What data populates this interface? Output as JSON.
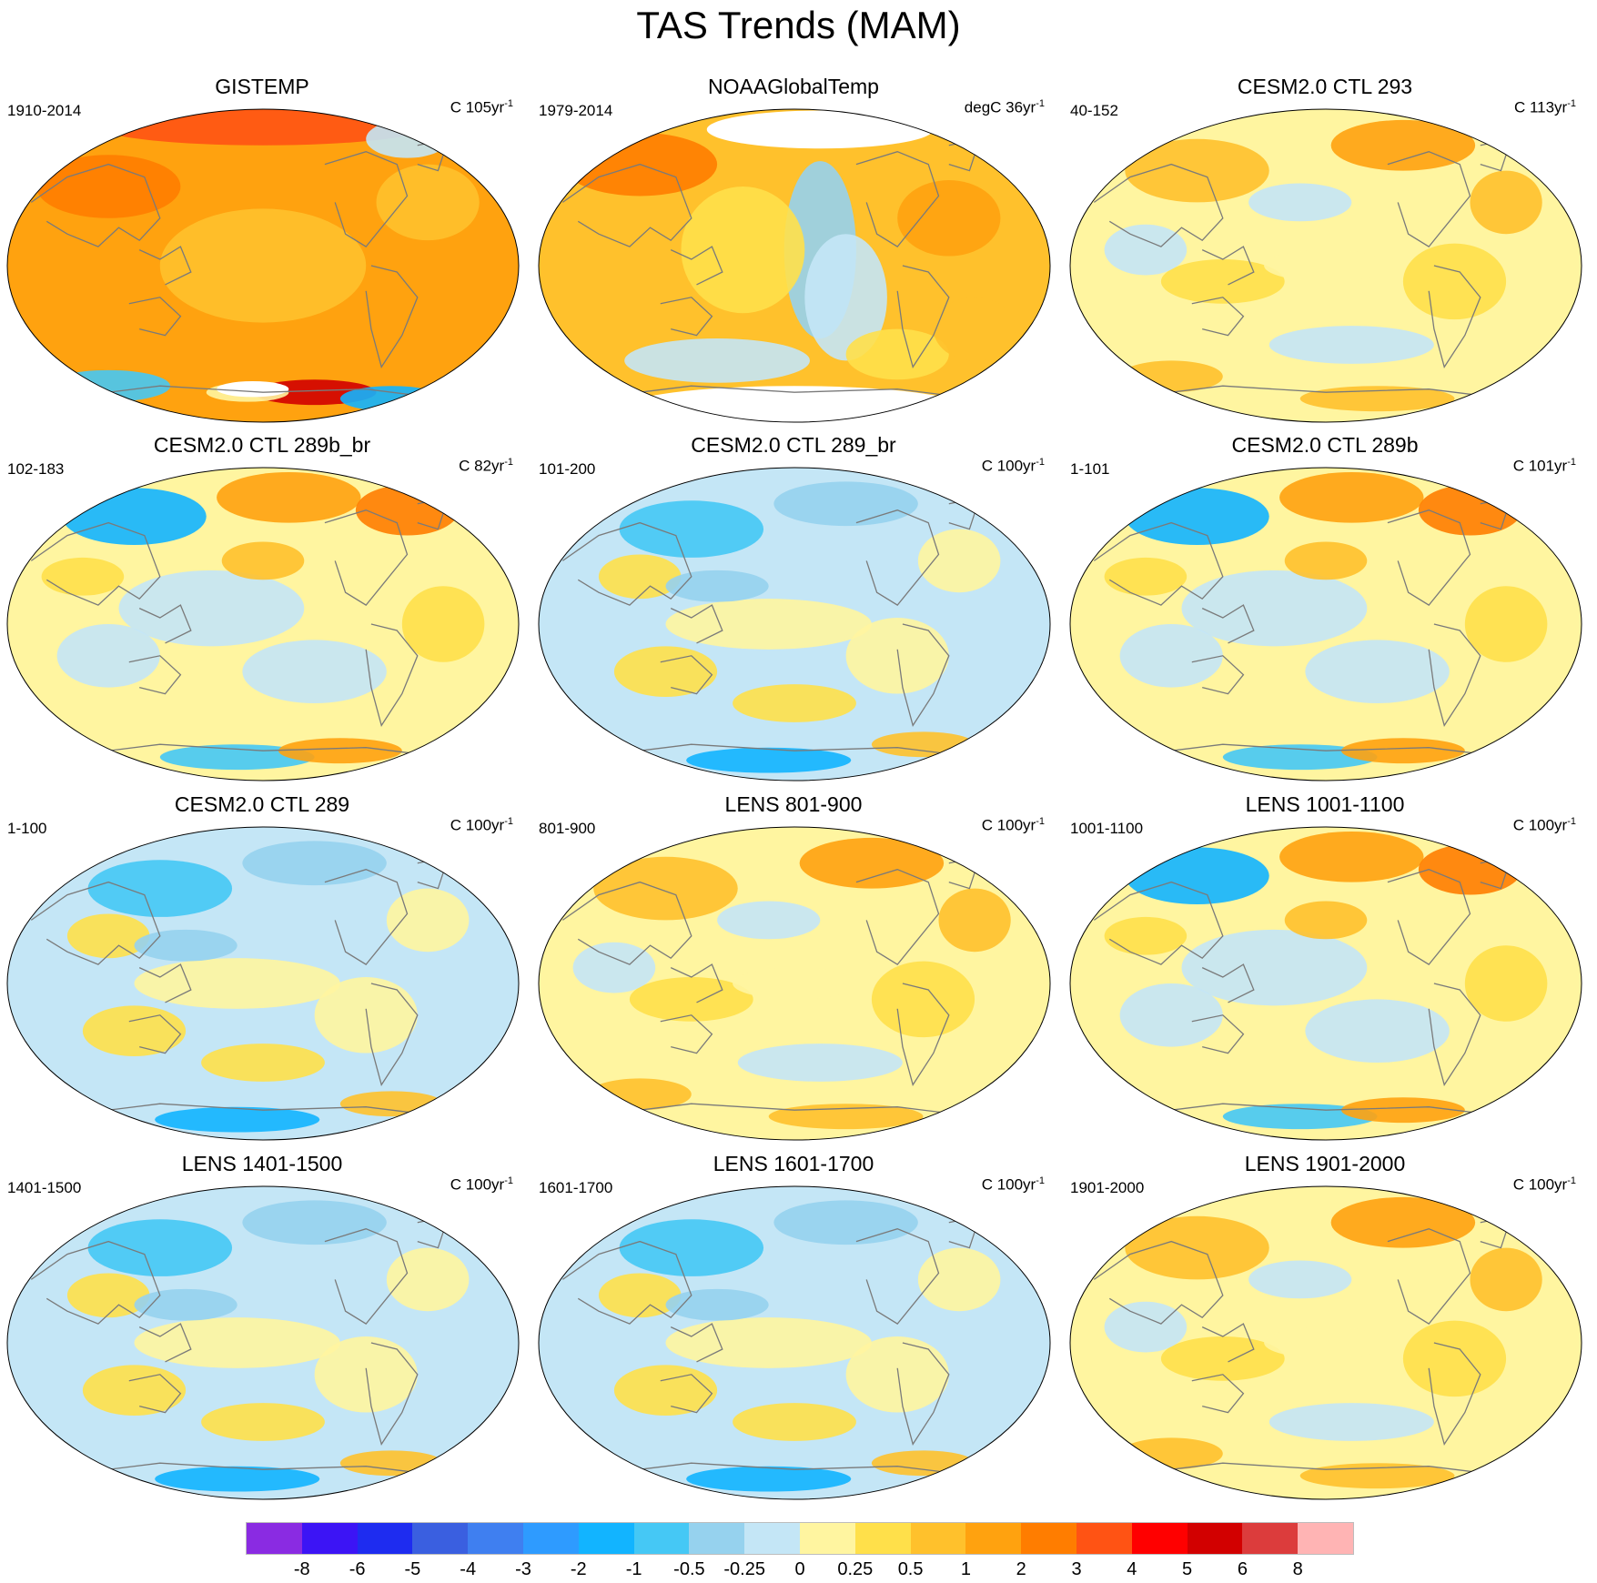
{
  "figure": {
    "title": "TAS Trends (MAM)"
  },
  "palette": {
    "ocean_base": "#fff5a0",
    "coast_color": "#7a7a7a",
    "missing_color": "#ffffff"
  },
  "panels": [
    {
      "title": "GISTEMP",
      "period": "1910-2014",
      "units_prefix": "C 105yr",
      "units_exp": "-1",
      "style": "gis"
    },
    {
      "title": "NOAAGlobalTemp",
      "period": "1979-2014",
      "units_prefix": "degC 36yr",
      "units_exp": "-1",
      "style": "noaa"
    },
    {
      "title": "CESM2.0 CTL 293",
      "period": "40-152",
      "units_prefix": "C 113yr",
      "units_exp": "-1",
      "style": "warm"
    },
    {
      "title": "CESM2.0 CTL 289b_br",
      "period": "102-183",
      "units_prefix": "C 82yr",
      "units_exp": "-1",
      "style": "mixed"
    },
    {
      "title": "CESM2.0 CTL 289_br",
      "period": "101-200",
      "units_prefix": "C 100yr",
      "units_exp": "-1",
      "style": "cool"
    },
    {
      "title": "CESM2.0 CTL 289b",
      "period": "1-101",
      "units_prefix": "C 101yr",
      "units_exp": "-1",
      "style": "mixed"
    },
    {
      "title": "CESM2.0 CTL 289",
      "period": "1-100",
      "units_prefix": "C 100yr",
      "units_exp": "-1",
      "style": "cool"
    },
    {
      "title": "LENS 801-900",
      "period": "801-900",
      "units_prefix": "C 100yr",
      "units_exp": "-1",
      "style": "warm"
    },
    {
      "title": "LENS 1001-1100",
      "period": "1001-1100",
      "units_prefix": "C 100yr",
      "units_exp": "-1",
      "style": "mixed"
    },
    {
      "title": "LENS 1401-1500",
      "period": "1401-1500",
      "units_prefix": "C 100yr",
      "units_exp": "-1",
      "style": "cool"
    },
    {
      "title": "LENS 1601-1700",
      "period": "1601-1700",
      "units_prefix": "C 100yr",
      "units_exp": "-1",
      "style": "cool"
    },
    {
      "title": "LENS 1901-2000",
      "period": "1901-2000",
      "units_prefix": "C 100yr",
      "units_exp": "-1",
      "style": "warm"
    }
  ],
  "colorbar": {
    "colors": [
      "#8a2be2",
      "#3c14f5",
      "#1e2cf0",
      "#3a5fe0",
      "#3f7ff0",
      "#2e9bff",
      "#12b4ff",
      "#45c8f5",
      "#96d2ee",
      "#c4e6f6",
      "#fff5a0",
      "#ffe04a",
      "#ffc12c",
      "#ffa20f",
      "#ff7d00",
      "#ff5314",
      "#ff0000",
      "#d20000",
      "#dc3c3c",
      "#ffb4b4"
    ],
    "labels": [
      "-8",
      "-6",
      "-5",
      "-4",
      "-3",
      "-2",
      "-1",
      "-0.5",
      "-0.25",
      "0",
      "0.25",
      "0.5",
      "1",
      "2",
      "3",
      "4",
      "5",
      "6",
      "8"
    ]
  }
}
